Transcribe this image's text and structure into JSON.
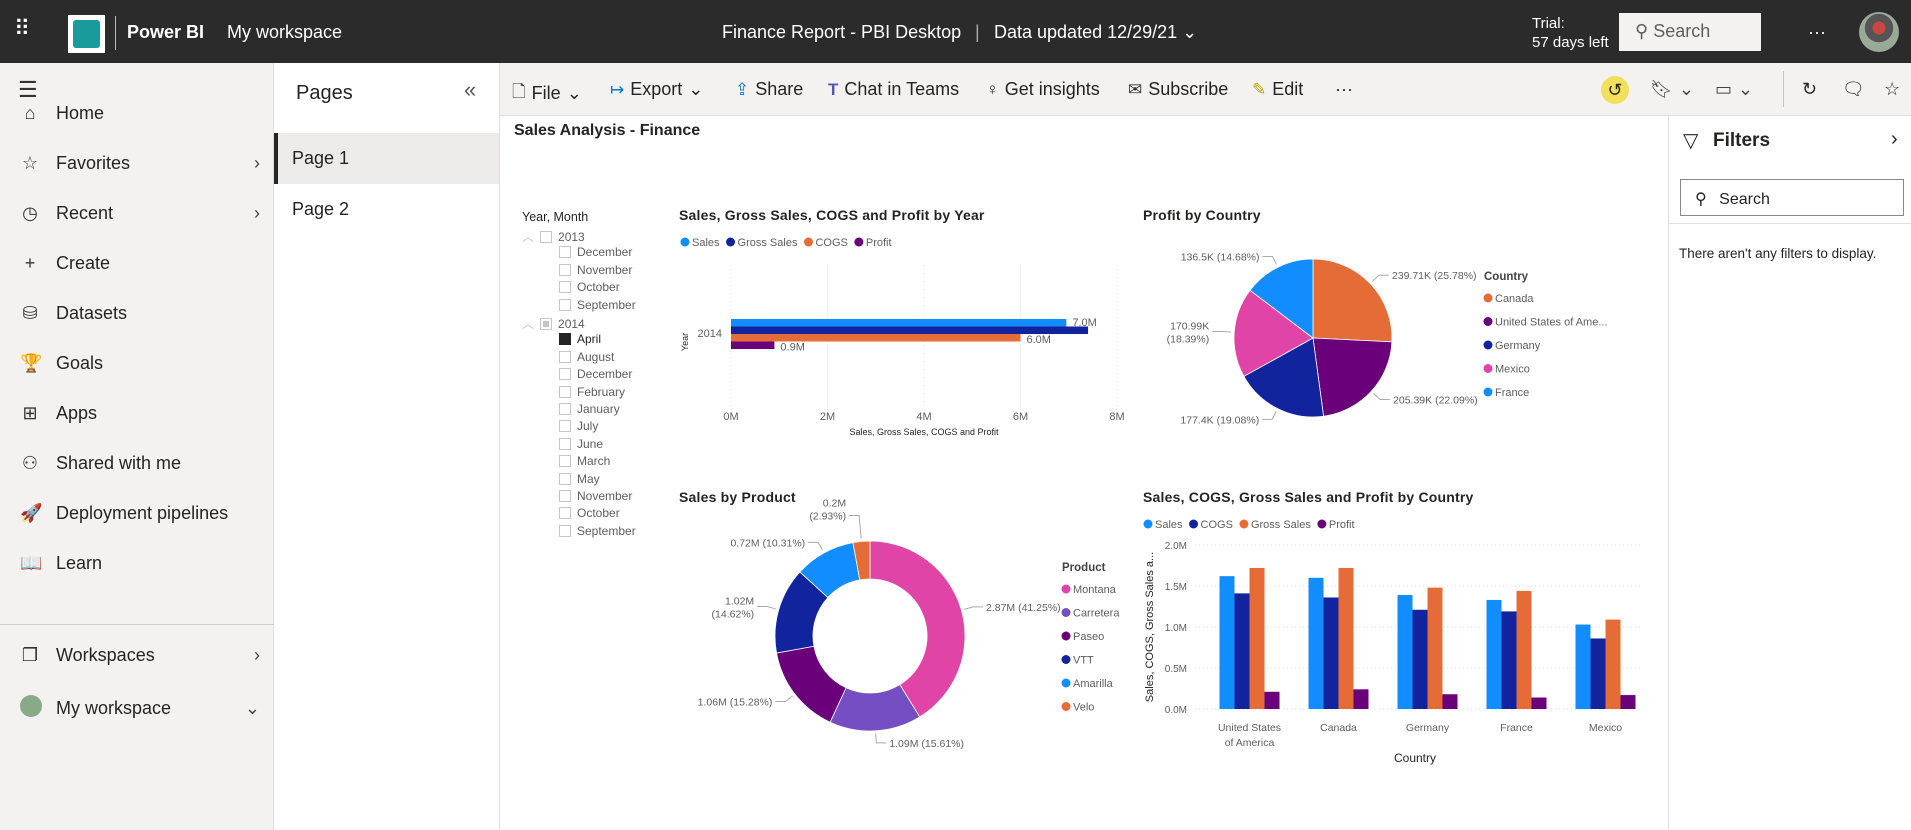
{
  "topbar": {
    "app_name": "Power BI",
    "workspace": "My workspace",
    "report_title": "Finance Report - PBI Desktop",
    "separator": "|",
    "data_updated": "Data updated 12/29/21",
    "trial_line1": "Trial:",
    "trial_line2": "57 days left",
    "search_placeholder": "Search",
    "more": "···"
  },
  "toolbar": {
    "items": [
      {
        "label": "File",
        "icon": "file-icon"
      },
      {
        "label": "Export",
        "icon": "export-icon"
      },
      {
        "label": "Share",
        "icon": "share-icon"
      },
      {
        "label": "Chat in Teams",
        "icon": "teams-icon"
      },
      {
        "label": "Get insights",
        "icon": "lightbulb-icon"
      },
      {
        "label": "Subscribe",
        "icon": "mail-icon"
      },
      {
        "label": "Edit",
        "icon": "pencil-icon"
      }
    ],
    "more": "···"
  },
  "leftnav": {
    "items": [
      {
        "label": "Home",
        "icon": "⌂"
      },
      {
        "label": "Favorites",
        "icon": "☆",
        "chevron": true
      },
      {
        "label": "Recent",
        "icon": "◷",
        "chevron": true
      },
      {
        "label": "Create",
        "icon": "+"
      },
      {
        "label": "Datasets",
        "icon": "⛁"
      },
      {
        "label": "Goals",
        "icon": "🏆"
      },
      {
        "label": "Apps",
        "icon": "⊞"
      },
      {
        "label": "Shared with me",
        "icon": "⚇"
      },
      {
        "label": "Deployment pipelines",
        "icon": "🚀"
      },
      {
        "label": "Learn",
        "icon": "📖"
      }
    ],
    "workspaces": "Workspaces",
    "my_workspace": "My workspace"
  },
  "pages": {
    "title": "Pages",
    "items": [
      "Page 1",
      "Page 2"
    ],
    "active": 0
  },
  "filters": {
    "title": "Filters",
    "search_placeholder": "Search",
    "empty": "There aren't any filters to display."
  },
  "report": {
    "title": "Sales Analysis - Finance"
  },
  "slicer": {
    "title": "Year, Month",
    "groups": [
      {
        "year": "2013",
        "state": "none",
        "months": [
          "December",
          "November",
          "October",
          "September"
        ]
      },
      {
        "year": "2014",
        "state": "partial",
        "months": [
          "April",
          "August",
          "December",
          "February",
          "January",
          "July",
          "June",
          "March",
          "May",
          "November",
          "October",
          "September"
        ],
        "selected": [
          "April"
        ]
      }
    ]
  },
  "colors": {
    "sales": "#118DFF",
    "dark_blue": "#12239E",
    "orange": "#E66C37",
    "purple": "#6B007B",
    "pink": "#E044A7",
    "violet": "#744EC2",
    "highlight": "#F2E05A"
  },
  "chart_data": [
    {
      "type": "bar",
      "orientation": "horizontal",
      "title": "Sales, Gross Sales, COGS and Profit by Year",
      "xlabel": "Sales, Gross Sales, COGS and Profit",
      "ylabel": "Year",
      "categories": [
        "2014"
      ],
      "xlim": [
        0,
        8000000
      ],
      "ticks": [
        "0M",
        "2M",
        "4M",
        "6M",
        "8M"
      ],
      "legend": "top-left",
      "grid": true,
      "series": [
        {
          "name": "Sales",
          "color": "#118DFF",
          "values": [
            6950000
          ],
          "label": "7.0M"
        },
        {
          "name": "Gross Sales",
          "color": "#12239E",
          "values": [
            7400000
          ],
          "label": ""
        },
        {
          "name": "COGS",
          "color": "#E66C37",
          "values": [
            6000000
          ],
          "label": "6.0M"
        },
        {
          "name": "Profit",
          "color": "#6B007B",
          "values": [
            900000
          ],
          "label": "0.9M"
        }
      ]
    },
    {
      "type": "pie",
      "title": "Profit by Country",
      "legend_title": "Country",
      "legend": "right",
      "slices": [
        {
          "name": "Canada",
          "value": 239710,
          "label": "239.71K (25.78%)",
          "color": "#E66C37"
        },
        {
          "name": "United States of Ame...",
          "value": 205390,
          "label": "205.39K (22.09%)",
          "color": "#6B007B"
        },
        {
          "name": "Germany",
          "value": 177400,
          "label": "177.4K (19.08%)",
          "color": "#12239E"
        },
        {
          "name": "Mexico",
          "value": 170990,
          "label": "170.99K (18.39%)",
          "color": "#E044A7"
        },
        {
          "name": "France",
          "value": 136500,
          "label": "136.5K (14.68%)",
          "color": "#118DFF"
        }
      ]
    },
    {
      "type": "pie",
      "variant": "donut",
      "title": "Sales by Product",
      "legend_title": "Product",
      "legend": "right",
      "slices": [
        {
          "name": "Montana",
          "value": 2870000,
          "label": "2.87M (41.25%)",
          "color": "#E044A7"
        },
        {
          "name": "Carretera",
          "value": 1090000,
          "label": "1.09M (15.61%)",
          "color": "#744EC2"
        },
        {
          "name": "Paseo",
          "value": 1060000,
          "label": "1.06M (15.28%)",
          "color": "#6B007B"
        },
        {
          "name": "VTT",
          "value": 1020000,
          "label": "1.02M (14.62%)",
          "color": "#12239E"
        },
        {
          "name": "Amarilla",
          "value": 720000,
          "label": "0.72M (10.31%)",
          "color": "#118DFF"
        },
        {
          "name": "Velo",
          "value": 200000,
          "label": "0.2M (2.93%)",
          "color": "#E66C37"
        }
      ]
    },
    {
      "type": "bar",
      "orientation": "vertical",
      "title": "Sales, COGS, Gross Sales and Profit by Country",
      "xlabel": "Country",
      "ylabel": "Sales, COGS, Gross Sales a...",
      "categories": [
        "United States of America",
        "Canada",
        "Germany",
        "France",
        "Mexico"
      ],
      "ylim": [
        0,
        2000000
      ],
      "ticks": [
        "0.0M",
        "0.5M",
        "1.0M",
        "1.5M",
        "2.0M"
      ],
      "legend": "top-left",
      "grid": true,
      "series": [
        {
          "name": "Sales",
          "color": "#118DFF",
          "values": [
            1620000,
            1600000,
            1390000,
            1330000,
            1030000
          ]
        },
        {
          "name": "COGS",
          "color": "#12239E",
          "values": [
            1410000,
            1360000,
            1210000,
            1190000,
            860000
          ]
        },
        {
          "name": "Gross Sales",
          "color": "#E66C37",
          "values": [
            1720000,
            1720000,
            1480000,
            1440000,
            1090000
          ]
        },
        {
          "name": "Profit",
          "color": "#6B007B",
          "values": [
            210000,
            240000,
            180000,
            140000,
            170000
          ]
        }
      ]
    }
  ]
}
